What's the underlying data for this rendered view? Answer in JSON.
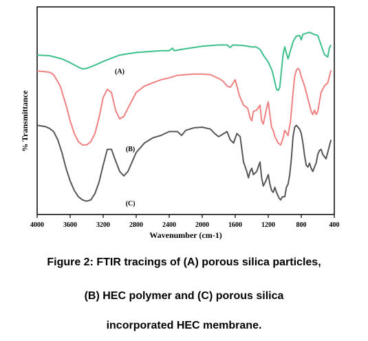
{
  "chart_data": {
    "type": "line",
    "xlabel": "Wavenumber (cm-1)",
    "ylabel": "% Transmittance",
    "xlim": [
      4000,
      400
    ],
    "x_reversed": true,
    "x_ticks": [
      4000,
      3600,
      3200,
      2800,
      2400,
      2000,
      1600,
      1200,
      800,
      400
    ],
    "grid": false,
    "colors": {
      "A": "#3dbf8a",
      "B": "#f08080",
      "C": "#555555",
      "axis": "#000000"
    },
    "series": [
      {
        "name": "(A)",
        "color": "#3dbf8a",
        "points": [
          [
            4000,
            61
          ],
          [
            3850,
            62
          ],
          [
            3700,
            67
          ],
          [
            3600,
            73
          ],
          [
            3500,
            80
          ],
          [
            3450,
            83
          ],
          [
            3400,
            82
          ],
          [
            3300,
            77
          ],
          [
            3200,
            71
          ],
          [
            3100,
            66
          ],
          [
            3000,
            61
          ],
          [
            2900,
            59
          ],
          [
            2800,
            57
          ],
          [
            2600,
            55
          ],
          [
            2500,
            54
          ],
          [
            2400,
            54
          ],
          [
            2360,
            50
          ],
          [
            2340,
            54
          ],
          [
            2200,
            51
          ],
          [
            2000,
            47
          ],
          [
            1900,
            46
          ],
          [
            1800,
            45
          ],
          [
            1700,
            45
          ],
          [
            1660,
            49
          ],
          [
            1630,
            45
          ],
          [
            1500,
            46
          ],
          [
            1400,
            48
          ],
          [
            1350,
            48
          ],
          [
            1300,
            52
          ],
          [
            1250,
            63
          ],
          [
            1200,
            72
          ],
          [
            1150,
            87
          ],
          [
            1100,
            115
          ],
          [
            1080,
            117
          ],
          [
            1060,
            112
          ],
          [
            1040,
            85
          ],
          [
            1020,
            60
          ],
          [
            1000,
            48
          ],
          [
            980,
            58
          ],
          [
            960,
            67
          ],
          [
            900,
            40
          ],
          [
            860,
            31
          ],
          [
            820,
            30
          ],
          [
            800,
            37
          ],
          [
            780,
            28
          ],
          [
            700,
            25
          ],
          [
            650,
            28
          ],
          [
            600,
            30
          ],
          [
            560,
            45
          ],
          [
            520,
            60
          ],
          [
            480,
            64
          ],
          [
            460,
            50
          ],
          [
            440,
            45
          ]
        ]
      },
      {
        "name": "(B)",
        "color": "#f08080",
        "points": [
          [
            4000,
            86
          ],
          [
            3850,
            88
          ],
          [
            3800,
            92
          ],
          [
            3720,
            110
          ],
          [
            3650,
            140
          ],
          [
            3600,
            165
          ],
          [
            3550,
            185
          ],
          [
            3500,
            198
          ],
          [
            3450,
            203
          ],
          [
            3400,
            203
          ],
          [
            3350,
            198
          ],
          [
            3300,
            185
          ],
          [
            3250,
            160
          ],
          [
            3200,
            128
          ],
          [
            3150,
            115
          ],
          [
            3100,
            120
          ],
          [
            3050,
            148
          ],
          [
            3000,
            162
          ],
          [
            2950,
            158
          ],
          [
            2900,
            145
          ],
          [
            2800,
            120
          ],
          [
            2700,
            110
          ],
          [
            2600,
            105
          ],
          [
            2500,
            100
          ],
          [
            2400,
            97
          ],
          [
            2300,
            93
          ],
          [
            2200,
            92
          ],
          [
            2100,
            91
          ],
          [
            2000,
            91
          ],
          [
            1900,
            92
          ],
          [
            1800,
            98
          ],
          [
            1750,
            102
          ],
          [
            1700,
            110
          ],
          [
            1660,
            112
          ],
          [
            1600,
            100
          ],
          [
            1550,
            125
          ],
          [
            1500,
            140
          ],
          [
            1450,
            145
          ],
          [
            1420,
            160
          ],
          [
            1400,
            165
          ],
          [
            1380,
            150
          ],
          [
            1340,
            148
          ],
          [
            1300,
            140
          ],
          [
            1280,
            165
          ],
          [
            1260,
            170
          ],
          [
            1220,
            145
          ],
          [
            1200,
            135
          ],
          [
            1180,
            155
          ],
          [
            1160,
            175
          ],
          [
            1140,
            180
          ],
          [
            1120,
            190
          ],
          [
            1100,
            195
          ],
          [
            1080,
            200
          ],
          [
            1050,
            203
          ],
          [
            1020,
            192
          ],
          [
            1000,
            180
          ],
          [
            960,
            188
          ],
          [
            930,
            165
          ],
          [
            900,
            120
          ],
          [
            880,
            95
          ],
          [
            860,
            85
          ],
          [
            840,
            82
          ],
          [
            820,
            85
          ],
          [
            800,
            95
          ],
          [
            760,
            110
          ],
          [
            740,
            120
          ],
          [
            700,
            140
          ],
          [
            680,
            150
          ],
          [
            660,
            155
          ],
          [
            640,
            148
          ],
          [
            620,
            155
          ],
          [
            600,
            150
          ],
          [
            560,
            120
          ],
          [
            520,
            110
          ],
          [
            480,
            105
          ],
          [
            460,
            95
          ],
          [
            440,
            85
          ]
        ]
      },
      {
        "name": "(C)",
        "color": "#555555",
        "points": [
          [
            4000,
            172
          ],
          [
            3900,
            174
          ],
          [
            3850,
            177
          ],
          [
            3800,
            182
          ],
          [
            3750,
            195
          ],
          [
            3700,
            215
          ],
          [
            3650,
            240
          ],
          [
            3600,
            260
          ],
          [
            3550,
            275
          ],
          [
            3500,
            285
          ],
          [
            3450,
            290
          ],
          [
            3400,
            292
          ],
          [
            3350,
            290
          ],
          [
            3300,
            280
          ],
          [
            3250,
            262
          ],
          [
            3200,
            235
          ],
          [
            3150,
            210
          ],
          [
            3100,
            210
          ],
          [
            3050,
            228
          ],
          [
            3000,
            245
          ],
          [
            2950,
            252
          ],
          [
            2900,
            245
          ],
          [
            2800,
            215
          ],
          [
            2700,
            200
          ],
          [
            2600,
            192
          ],
          [
            2500,
            188
          ],
          [
            2400,
            182
          ],
          [
            2300,
            182
          ],
          [
            2250,
            188
          ],
          [
            2200,
            180
          ],
          [
            2100,
            176
          ],
          [
            2000,
            175
          ],
          [
            1900,
            178
          ],
          [
            1850,
            185
          ],
          [
            1800,
            190
          ],
          [
            1750,
            186
          ],
          [
            1700,
            182
          ],
          [
            1660,
            195
          ],
          [
            1620,
            200
          ],
          [
            1580,
            185
          ],
          [
            1540,
            190
          ],
          [
            1500,
            230
          ],
          [
            1460,
            245
          ],
          [
            1440,
            255
          ],
          [
            1420,
            245
          ],
          [
            1400,
            240
          ],
          [
            1380,
            250
          ],
          [
            1340,
            245
          ],
          [
            1300,
            230
          ],
          [
            1280,
            255
          ],
          [
            1260,
            268
          ],
          [
            1230,
            260
          ],
          [
            1200,
            250
          ],
          [
            1180,
            265
          ],
          [
            1160,
            275
          ],
          [
            1140,
            278
          ],
          [
            1120,
            270
          ],
          [
            1100,
            278
          ],
          [
            1070,
            287
          ],
          [
            1050,
            290
          ],
          [
            1030,
            285
          ],
          [
            1000,
            285
          ],
          [
            980,
            270
          ],
          [
            960,
            265
          ],
          [
            940,
            250
          ],
          [
            920,
            225
          ],
          [
            900,
            190
          ],
          [
            880,
            175
          ],
          [
            860,
            172
          ],
          [
            820,
            178
          ],
          [
            800,
            185
          ],
          [
            780,
            200
          ],
          [
            760,
            220
          ],
          [
            740,
            235
          ],
          [
            720,
            238
          ],
          [
            700,
            232
          ],
          [
            680,
            240
          ],
          [
            660,
            245
          ],
          [
            640,
            238
          ],
          [
            620,
            232
          ],
          [
            600,
            218
          ],
          [
            580,
            212
          ],
          [
            560,
            210
          ],
          [
            540,
            218
          ],
          [
            500,
            225
          ],
          [
            480,
            215
          ],
          [
            460,
            205
          ],
          [
            440,
            195
          ]
        ]
      }
    ],
    "annotations": [
      {
        "text": "(A)",
        "x": 3000,
        "y": 90
      },
      {
        "text": "(B)",
        "x": 2870,
        "y": 213
      },
      {
        "text": "(C)",
        "x": 2870,
        "y": 299
      }
    ]
  },
  "caption": {
    "line1": "Figure 2: FTIR tracings of (A) porous silica particles,",
    "line2": "(B) HEC polymer and (C) porous silica",
    "line3": "incorporated HEC membrane."
  }
}
